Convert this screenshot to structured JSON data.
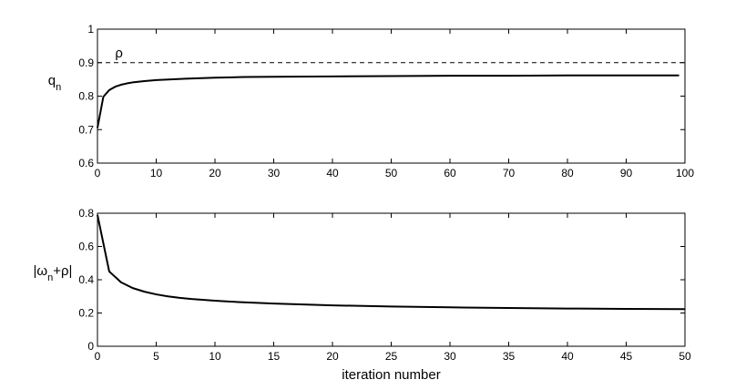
{
  "chart_data": [
    {
      "type": "line",
      "ylabel_main": "q",
      "ylabel_sub": "n",
      "xlabel": "",
      "xlim": [
        0,
        100
      ],
      "ylim": [
        0.6,
        1.0
      ],
      "xticks": [
        "0",
        "10",
        "20",
        "30",
        "40",
        "50",
        "60",
        "70",
        "80",
        "90",
        "100"
      ],
      "yticks": [
        "0.6",
        "0.7",
        "0.8",
        "0.9",
        "1"
      ],
      "grid": false,
      "reference_line": {
        "y": 0.9,
        "label": "ρ",
        "style": "dashed"
      },
      "series": [
        {
          "x": [
            0,
            1,
            2,
            3,
            4,
            5,
            6,
            8,
            10,
            15,
            20,
            25,
            30,
            40,
            50,
            60,
            70,
            80,
            90,
            99
          ],
          "y": [
            0.705,
            0.798,
            0.818,
            0.828,
            0.834,
            0.838,
            0.841,
            0.845,
            0.848,
            0.852,
            0.855,
            0.857,
            0.858,
            0.859,
            0.86,
            0.861,
            0.861,
            0.862,
            0.862,
            0.862
          ]
        }
      ]
    },
    {
      "type": "line",
      "ylabel_main": "|ω",
      "ylabel_sub": "n",
      "ylabel_tail": "+ρ|",
      "xlabel": "iteration number",
      "xlim": [
        0,
        50
      ],
      "ylim": [
        0,
        0.8
      ],
      "xticks": [
        "0",
        "5",
        "10",
        "15",
        "20",
        "25",
        "30",
        "35",
        "40",
        "45",
        "50"
      ],
      "yticks": [
        "0",
        "0.2",
        "0.4",
        "0.6",
        "0.8"
      ],
      "grid": false,
      "series": [
        {
          "x": [
            0,
            1,
            2,
            3,
            4,
            5,
            6,
            7,
            8,
            10,
            12,
            15,
            20,
            25,
            30,
            35,
            40,
            45,
            50
          ],
          "y": [
            0.79,
            0.45,
            0.385,
            0.35,
            0.328,
            0.312,
            0.3,
            0.291,
            0.284,
            0.274,
            0.266,
            0.257,
            0.246,
            0.239,
            0.234,
            0.23,
            0.227,
            0.225,
            0.223
          ]
        }
      ]
    }
  ]
}
